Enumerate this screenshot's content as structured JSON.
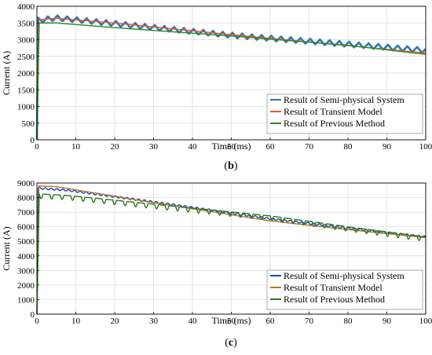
{
  "chart_data": [
    {
      "type": "line",
      "panel_label": "b",
      "xlabel": "Time (ms)",
      "ylabel": "Current (A)",
      "xlim": [
        0,
        100
      ],
      "ylim": [
        0,
        4000
      ],
      "xticks": [
        0,
        10,
        20,
        30,
        40,
        50,
        60,
        70,
        80,
        90,
        100
      ],
      "yticks": [
        0,
        500,
        1000,
        1500,
        2000,
        2500,
        3000,
        3500,
        4000
      ],
      "grid": true,
      "legend_position": "bottom-right",
      "series": [
        {
          "name": "Result of Semi-physical System",
          "color": "#2e75b6",
          "ripple": 80,
          "ripple_period": 2.5,
          "points": [
            [
              0,
              0
            ],
            [
              0.3,
              3580
            ],
            [
              5,
              3650
            ],
            [
              20,
              3480
            ],
            [
              50,
              3130
            ],
            [
              80,
              2860
            ],
            [
              100,
              2680
            ]
          ]
        },
        {
          "name": "Result of Transient Model",
          "color": "#e8582a",
          "ripple": 0,
          "ripple_period": 0,
          "points": [
            [
              0,
              0
            ],
            [
              0.5,
              3600
            ],
            [
              5,
              3640
            ],
            [
              20,
              3500
            ],
            [
              50,
              3150
            ],
            [
              80,
              2820
            ],
            [
              100,
              2600
            ]
          ]
        },
        {
          "name": "Result of Previous Method",
          "color": "#2a8a1e",
          "ripple": 0,
          "ripple_period": 0,
          "points": [
            [
              0,
              0
            ],
            [
              0.6,
              3500
            ],
            [
              5,
              3500
            ],
            [
              20,
              3360
            ],
            [
              50,
              3110
            ],
            [
              80,
              2830
            ],
            [
              100,
              2560
            ]
          ]
        }
      ]
    },
    {
      "type": "line",
      "panel_label": "c",
      "xlabel": "Time (ms)",
      "ylabel": "Current (A)",
      "xlim": [
        0,
        100
      ],
      "ylim": [
        0,
        9000
      ],
      "xticks": [
        0,
        10,
        20,
        30,
        40,
        50,
        60,
        70,
        80,
        90,
        100
      ],
      "yticks": [
        0,
        1000,
        2000,
        3000,
        4000,
        5000,
        6000,
        7000,
        8000,
        9000
      ],
      "grid": true,
      "legend_position": "bottom-right",
      "series": [
        {
          "name": "Result of Semi-physical System",
          "color": "#2244aa",
          "ripple": 60,
          "ripple_period": 1.5,
          "points": [
            [
              0,
              0
            ],
            [
              0.3,
              8650
            ],
            [
              8,
              8500
            ],
            [
              30,
              7700
            ],
            [
              60,
              6550
            ],
            [
              80,
              5900
            ],
            [
              100,
              5300
            ]
          ]
        },
        {
          "name": "Result of Transient Model",
          "color": "#b8732a",
          "ripple": 0,
          "ripple_period": 0,
          "points": [
            [
              0,
              0
            ],
            [
              0.5,
              8800
            ],
            [
              5,
              8750
            ],
            [
              30,
              7650
            ],
            [
              60,
              6400
            ],
            [
              80,
              5800
            ],
            [
              100,
              5250
            ]
          ]
        },
        {
          "name": "Result of Previous Method",
          "color": "#2a7a1e",
          "ripple": 300,
          "ripple_period": 2.7,
          "points": [
            [
              0,
              0
            ],
            [
              0.6,
              8200
            ],
            [
              8,
              8100
            ],
            [
              30,
              7500
            ],
            [
              60,
              6700
            ],
            [
              80,
              5950
            ],
            [
              100,
              5250
            ]
          ]
        }
      ]
    }
  ]
}
